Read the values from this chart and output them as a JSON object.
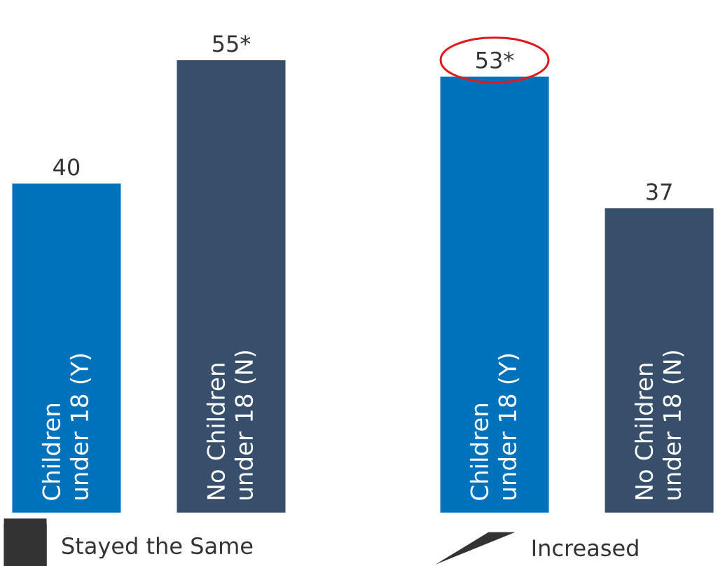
{
  "chart_data": {
    "type": "bar",
    "categories": [
      "Children under 18 (Y)",
      "No Children under 18 (N)",
      "Children under 18 (Y)",
      "No Children under 18 (N)"
    ],
    "values": [
      40,
      55,
      53,
      37
    ],
    "colors": [
      "#0072bc",
      "#374f6b",
      "#0072bc",
      "#374f6b"
    ],
    "value_labels": [
      "40",
      "55*",
      "53*",
      "37"
    ],
    "annotations": [
      "Stayed the Same",
      "Increased"
    ]
  }
}
